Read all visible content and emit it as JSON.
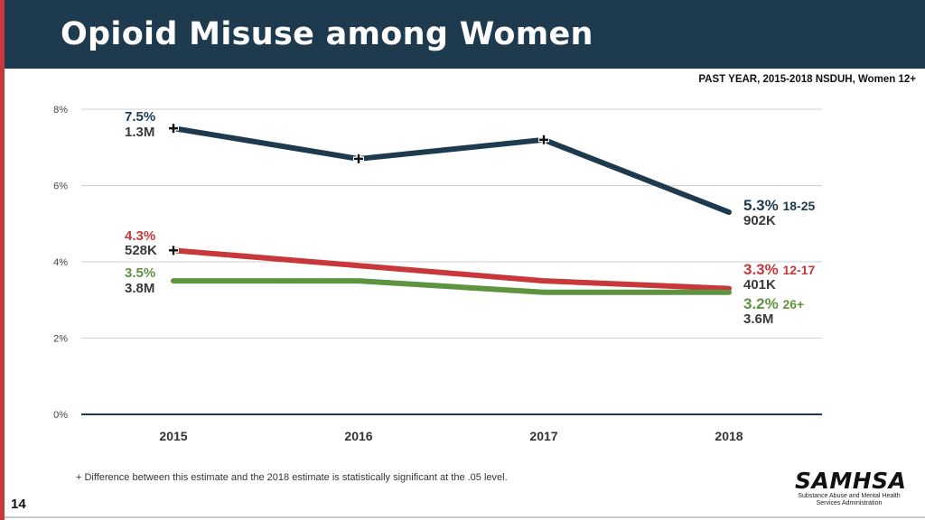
{
  "header": {
    "title": "Opioid Misuse among Women"
  },
  "subtitle": "PAST YEAR, 2015-2018 NSDUH, Women 12+",
  "footnote": "+ Difference between this estimate and the 2018 estimate is statistically significant at the .05 level.",
  "page_number": "14",
  "logo": {
    "name": "SAMHSA",
    "line1": "Substance Abuse and Mental Health",
    "line2": "Services Administration"
  },
  "colors": {
    "header_bg": "#1e3a4f",
    "accent": "#c8373a",
    "grid": "#cfcfcf",
    "axis": "#1e3a4f"
  },
  "chart_data": {
    "type": "line",
    "title": "Opioid Misuse among Women",
    "categories": [
      "2015",
      "2016",
      "2017",
      "2018"
    ],
    "ylim": [
      0,
      8
    ],
    "yticks": [
      0,
      2,
      4,
      6,
      8
    ],
    "ytick_labels": [
      "0%",
      "2%",
      "4%",
      "6%",
      "8%"
    ],
    "series": [
      {
        "name": "18-25",
        "color": "#1e3a4f",
        "values": [
          7.5,
          6.7,
          7.2,
          5.3
        ],
        "significant": [
          true,
          true,
          true,
          false
        ],
        "start_pct": "7.5%",
        "start_count": "1.3M",
        "end_pct": "5.3%",
        "end_count": "902K",
        "end_label": "18-25"
      },
      {
        "name": "12-17",
        "color": "#c8373a",
        "values": [
          4.3,
          3.9,
          3.5,
          3.3
        ],
        "significant": [
          true,
          false,
          false,
          false
        ],
        "start_pct": "4.3%",
        "start_count": "528K",
        "end_pct": "3.3%",
        "end_count": "401K",
        "end_label": "12-17"
      },
      {
        "name": "26+",
        "color": "#5e9440",
        "values": [
          3.5,
          3.5,
          3.2,
          3.2
        ],
        "significant": [
          false,
          false,
          false,
          false
        ],
        "start_pct": "3.5%",
        "start_count": "3.8M",
        "end_pct": "3.2%",
        "end_count": "3.6M",
        "end_label": "26+"
      }
    ]
  }
}
